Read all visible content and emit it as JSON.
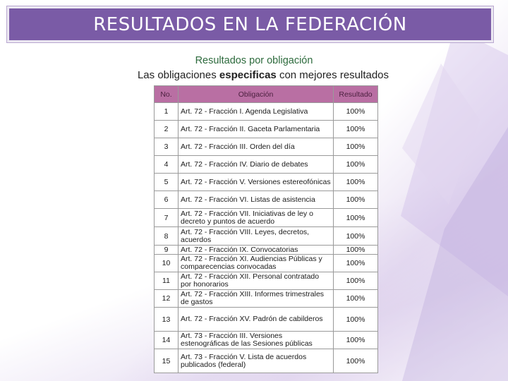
{
  "title": "RESULTADOS EN LA FEDERACIÓN",
  "subtitle": "Resultados por obligación",
  "description": {
    "before": "Las obligaciones ",
    "bold": "especificas",
    "after": " con mejores resultados"
  },
  "table": {
    "headers": [
      "No.",
      "Obligación",
      "Resultado"
    ],
    "rows": [
      {
        "no": "1",
        "obligacion": "Art. 72 - Fracción I. Agenda Legislativa",
        "resultado": "100%"
      },
      {
        "no": "2",
        "obligacion": "Art. 72 - Fracción II. Gaceta Parlamentaria",
        "resultado": "100%"
      },
      {
        "no": "3",
        "obligacion": "Art. 72 - Fracción III. Orden del día",
        "resultado": "100%"
      },
      {
        "no": "4",
        "obligacion": "Art. 72 - Fracción IV. Diario de debates",
        "resultado": "100%"
      },
      {
        "no": "5",
        "obligacion": "Art. 72 - Fracción V. Versiones estereofónicas",
        "resultado": "100%"
      },
      {
        "no": "6",
        "obligacion": "Art. 72 - Fracción VI. Listas de asistencia",
        "resultado": "100%"
      },
      {
        "no": "7",
        "obligacion": "Art. 72 - Fracción VII. Iniciativas de ley o decreto y puntos de acuerdo",
        "resultado": "100%"
      },
      {
        "no": "8",
        "obligacion": "Art. 72 - Fracción VIII. Leyes, decretos, acuerdos",
        "resultado": "100%"
      },
      {
        "no": "9",
        "obligacion": "Art. 72 - Fracción IX. Convocatorias",
        "resultado": "100%"
      },
      {
        "no": "10",
        "obligacion": "Art. 72 - Fracción XI. Audiencias Públicas y comparecencias convocadas",
        "resultado": "100%"
      },
      {
        "no": "11",
        "obligacion": "Art. 72 - Fracción XII. Personal contratado por honorarios",
        "resultado": "100%"
      },
      {
        "no": "12",
        "obligacion": "Art. 72 - Fracción XIII. Informes trimestrales de gastos",
        "resultado": "100%"
      },
      {
        "no": "13",
        "obligacion": "Art. 72 - Fracción XV. Padrón de cabilderos",
        "resultado": "100%"
      },
      {
        "no": "14",
        "obligacion": "Art. 73 - Fracción III. Versiones estenográficas de las Sesiones públicas",
        "resultado": "100%"
      },
      {
        "no": "15",
        "obligacion": "Art. 73 - Fracción V. Lista de acuerdos publicados (federal)",
        "resultado": "100%"
      }
    ]
  },
  "colors": {
    "title_bar": "#7a5ba6",
    "header_bg": "#b96fa3",
    "subtitle": "#2c6a3c"
  }
}
